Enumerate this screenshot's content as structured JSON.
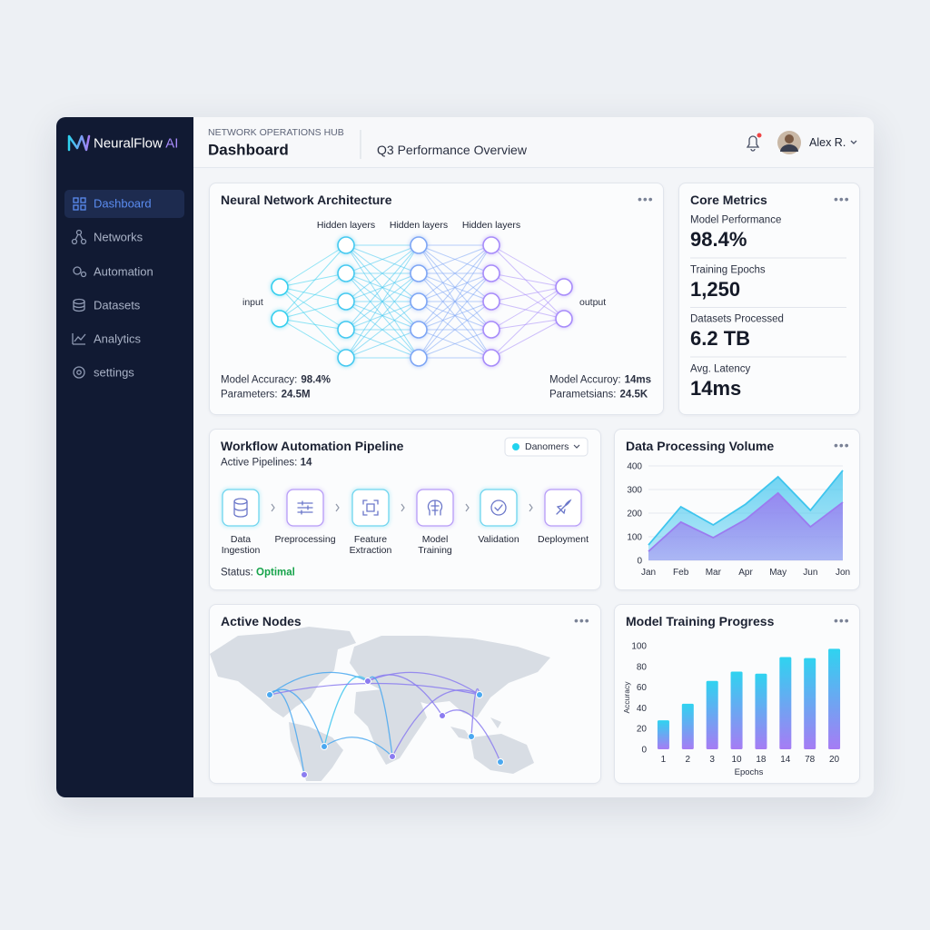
{
  "sidebar": {
    "brand": "NeuralFlow",
    "brand_suffix": "AI",
    "nav": [
      "Dashboard",
      "Networks",
      "Automation",
      "Datasets",
      "Analytics",
      "settings"
    ]
  },
  "header": {
    "eyebrow": "NETWORK OPERATIONS HUB",
    "title": "Dashboard",
    "subtitle": "Q3 Performance Overview",
    "user": "Alex R."
  },
  "neural_network": {
    "title": "Neural Network Architecture",
    "layer_labels": [
      "Hidden layers",
      "Hidden layers",
      "Hidden layers"
    ],
    "input_label": "input",
    "output_label": "output",
    "stats": [
      {
        "label": "Model Accuracy:",
        "value": "98.4%"
      },
      {
        "label": "Parameters:",
        "value": "24.5M"
      },
      {
        "label": "Model Accuroy:",
        "value": "14ms"
      },
      {
        "label": "Parametsians:",
        "value": "24.5K"
      }
    ]
  },
  "core_metrics": {
    "title": "Core Metrics",
    "items": [
      {
        "label": "Model Performance",
        "value": "98.4%"
      },
      {
        "label": "Training Epochs",
        "value": "1,250"
      },
      {
        "label": "Datasets Processed",
        "value": "6.2 TB"
      },
      {
        "label": "Avg. Latency",
        "value": "14ms"
      }
    ]
  },
  "workflow": {
    "title": "Workflow Automation Pipeline",
    "pipelines_label": "Active Pipelines:",
    "pipelines_value": 14,
    "filter": "Danomers",
    "steps": [
      "Data Ingestion",
      "Preprocessing",
      "Feature Extraction",
      "Model Training",
      "Validation",
      "Deployment"
    ],
    "status_label": "Status:",
    "status_value": "Optimal"
  },
  "active_nodes": {
    "title": "Active Nodes"
  },
  "chart_data": [
    {
      "type": "area",
      "title": "Data Processing Volume",
      "categories": [
        "Jan",
        "Feb",
        "Mar",
        "Apr",
        "May",
        "Jun",
        "Jon"
      ],
      "series": [
        {
          "color": "#3ec5ee",
          "values": [
            65,
            227,
            150,
            238,
            354,
            212,
            381
          ]
        },
        {
          "color": "#9b7bf0",
          "values": [
            38,
            162,
            96,
            173,
            285,
            142,
            246
          ]
        }
      ],
      "ylim": [
        0,
        400
      ],
      "yticks": [
        0,
        100,
        200,
        300,
        400
      ],
      "grid": true
    },
    {
      "type": "bar",
      "title": "Model Training Progress",
      "categories": [
        "1",
        "2",
        "3",
        "10",
        "18",
        "14",
        "78",
        "20"
      ],
      "values": [
        28,
        44,
        66,
        75,
        73,
        89,
        88,
        97
      ],
      "gradient": [
        "#2fd3f0",
        "#a67cf4"
      ],
      "x_label": "Epochs",
      "y_label": "Accuracy",
      "ylim": [
        0,
        100
      ],
      "yticks": [
        0,
        20,
        40,
        60,
        80,
        100
      ],
      "grid": false
    }
  ]
}
